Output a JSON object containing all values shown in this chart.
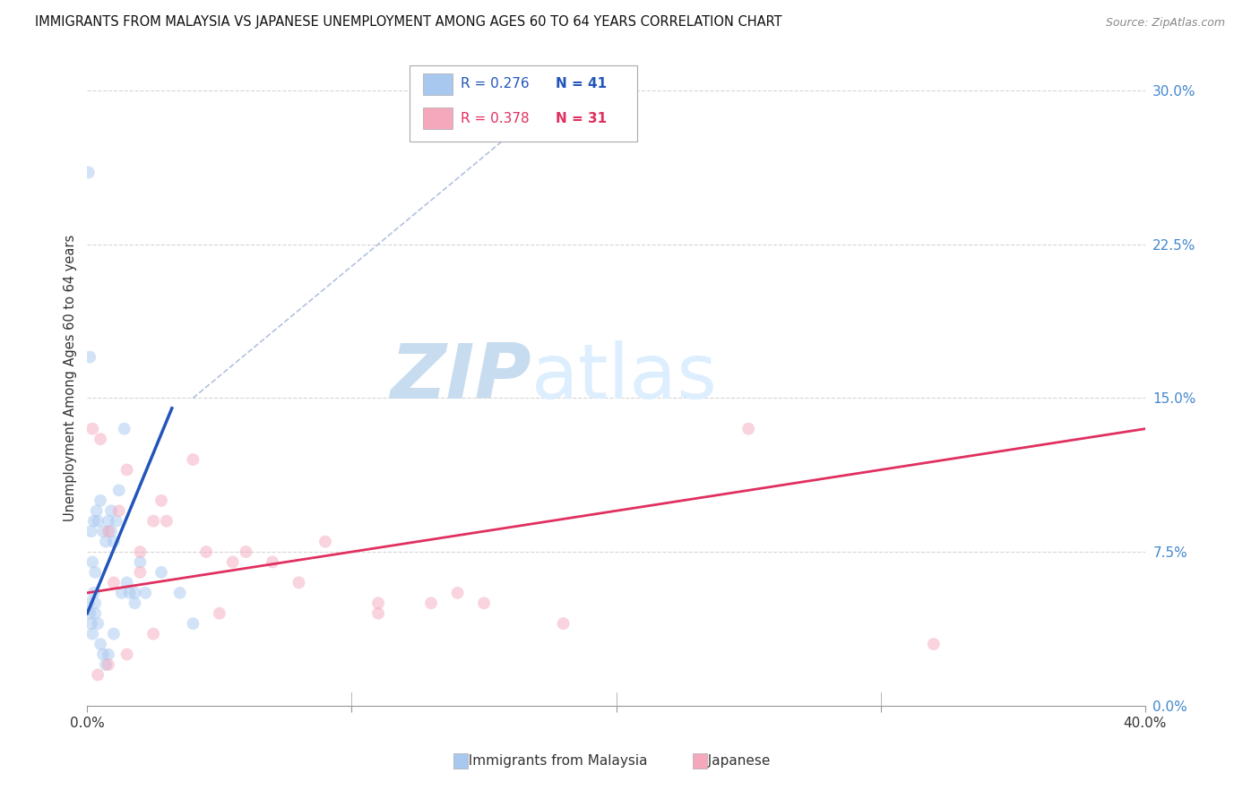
{
  "title": "IMMIGRANTS FROM MALAYSIA VS JAPANESE UNEMPLOYMENT AMONG AGES 60 TO 64 YEARS CORRELATION CHART",
  "source": "Source: ZipAtlas.com",
  "ylabel": "Unemployment Among Ages 60 to 64 years",
  "ytick_labels": [
    "0.0%",
    "7.5%",
    "15.0%",
    "22.5%",
    "30.0%"
  ],
  "ytick_values": [
    0.0,
    7.5,
    15.0,
    22.5,
    30.0
  ],
  "xlim": [
    0.0,
    40.0
  ],
  "ylim": [
    0.0,
    32.0
  ],
  "legend_entries": [
    {
      "label": "Immigrants from Malaysia",
      "R": "0.276",
      "N": "41",
      "color": "#a8c8f0"
    },
    {
      "label": "Japanese",
      "R": "0.378",
      "N": "31",
      "color": "#f5a8bc"
    }
  ],
  "malaysia_scatter_x": [
    0.05,
    0.1,
    0.15,
    0.2,
    0.25,
    0.3,
    0.35,
    0.4,
    0.5,
    0.6,
    0.7,
    0.8,
    0.9,
    1.0,
    1.1,
    1.2,
    1.4,
    1.6,
    1.8,
    2.0,
    0.05,
    0.1,
    0.15,
    0.2,
    0.25,
    0.3,
    0.4,
    0.5,
    0.6,
    0.7,
    0.8,
    1.0,
    1.3,
    1.5,
    1.8,
    2.2,
    2.8,
    3.5,
    4.0,
    0.3,
    0.9
  ],
  "malaysia_scatter_y": [
    26.0,
    17.0,
    8.5,
    7.0,
    9.0,
    6.5,
    9.5,
    9.0,
    10.0,
    8.5,
    8.0,
    9.0,
    9.5,
    8.0,
    9.0,
    10.5,
    13.5,
    5.5,
    5.5,
    7.0,
    5.0,
    4.5,
    4.0,
    3.5,
    5.5,
    5.0,
    4.0,
    3.0,
    2.5,
    2.0,
    2.5,
    3.5,
    5.5,
    6.0,
    5.0,
    5.5,
    6.5,
    5.5,
    4.0,
    4.5,
    8.5
  ],
  "japanese_scatter_x": [
    0.2,
    0.5,
    0.8,
    1.2,
    1.5,
    2.0,
    2.5,
    3.0,
    4.5,
    5.5,
    7.0,
    9.0,
    11.0,
    13.0,
    15.0,
    18.0,
    25.0,
    32.0,
    1.0,
    2.0,
    2.8,
    4.0,
    6.0,
    8.0,
    11.0,
    14.0,
    0.4,
    0.8,
    1.5,
    2.5,
    5.0
  ],
  "japanese_scatter_y": [
    13.5,
    13.0,
    8.5,
    9.5,
    11.5,
    7.5,
    9.0,
    9.0,
    7.5,
    7.0,
    7.0,
    8.0,
    4.5,
    5.0,
    5.0,
    4.0,
    13.5,
    3.0,
    6.0,
    6.5,
    10.0,
    12.0,
    7.5,
    6.0,
    5.0,
    5.5,
    1.5,
    2.0,
    2.5,
    3.5,
    4.5
  ],
  "malaysia_line_x": [
    0.0,
    3.2
  ],
  "malaysia_line_y": [
    4.5,
    14.5
  ],
  "japanese_line_x": [
    0.0,
    40.0
  ],
  "japanese_line_y": [
    5.5,
    13.5
  ],
  "diagonal_line_x": [
    4.0,
    18.0
  ],
  "diagonal_line_y": [
    15.0,
    30.0
  ],
  "scatter_size": 100,
  "scatter_alpha": 0.5,
  "malaysia_color": "#a8c8f0",
  "japanese_color": "#f5a8bc",
  "malaysia_line_color": "#2255bb",
  "japanese_line_color": "#e03060",
  "diagonal_color": "#aabbdd",
  "watermark_zip_color": "#c8dcf0",
  "watermark_atlas_color": "#ddeeff",
  "background_color": "#ffffff",
  "grid_color": "#cccccc",
  "tick_color": "#4488cc",
  "text_color": "#333333"
}
